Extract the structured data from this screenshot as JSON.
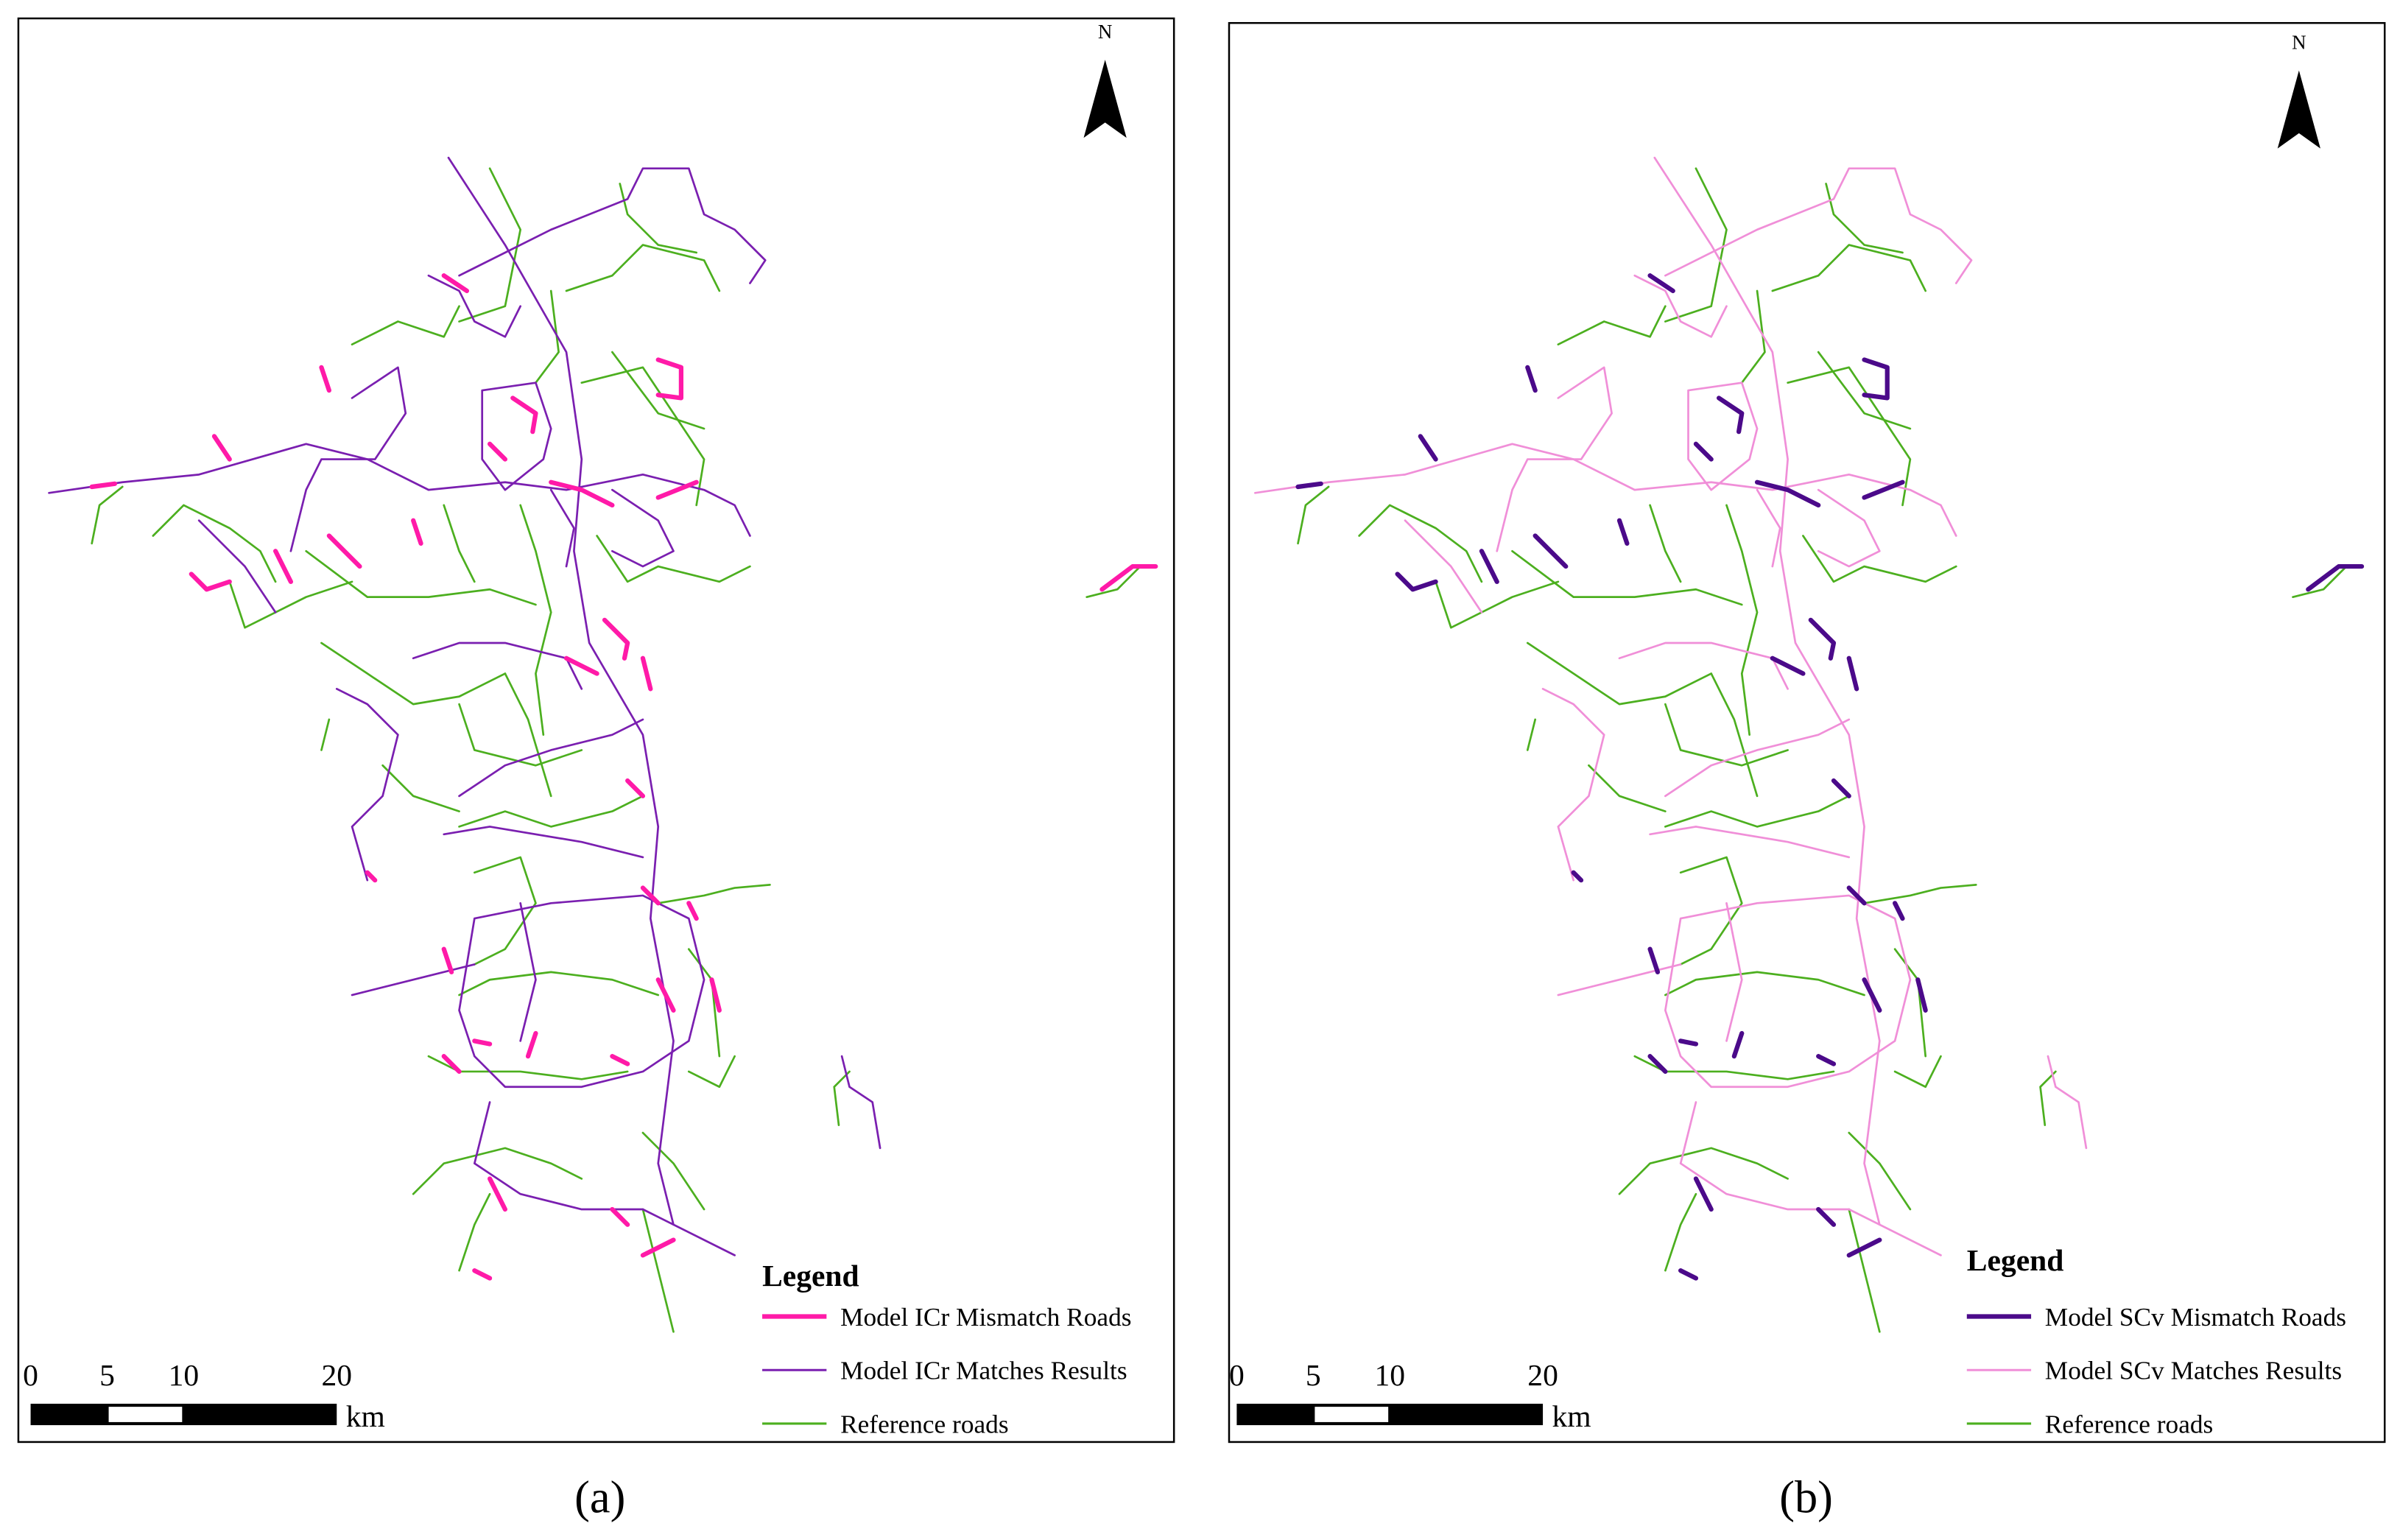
{
  "panels": [
    {
      "caption": "(a)",
      "north": "N",
      "legend": {
        "title": "Legend",
        "items": [
          {
            "label": "Model ICr Mismatch Roads",
            "color": "#ff1aa8"
          },
          {
            "label": "Model ICr Matches Results",
            "color": "#7a1fb0"
          },
          {
            "label": "Reference roads",
            "color": "#4caf1f"
          }
        ]
      },
      "scale": {
        "ticks": [
          "0",
          "5",
          "10",
          "20"
        ],
        "unit": "km"
      }
    },
    {
      "caption": "(b)",
      "north": "N",
      "legend": {
        "title": "Legend",
        "items": [
          {
            "label": "Model SCv Mismatch Roads",
            "color": "#4b0a8a"
          },
          {
            "label": "Model SCv Matches Results",
            "color": "#f08fd8"
          },
          {
            "label": "Reference roads",
            "color": "#4caf1f"
          }
        ]
      },
      "scale": {
        "ticks": [
          "0",
          "5",
          "10",
          "20"
        ],
        "unit": "km"
      }
    }
  ]
}
